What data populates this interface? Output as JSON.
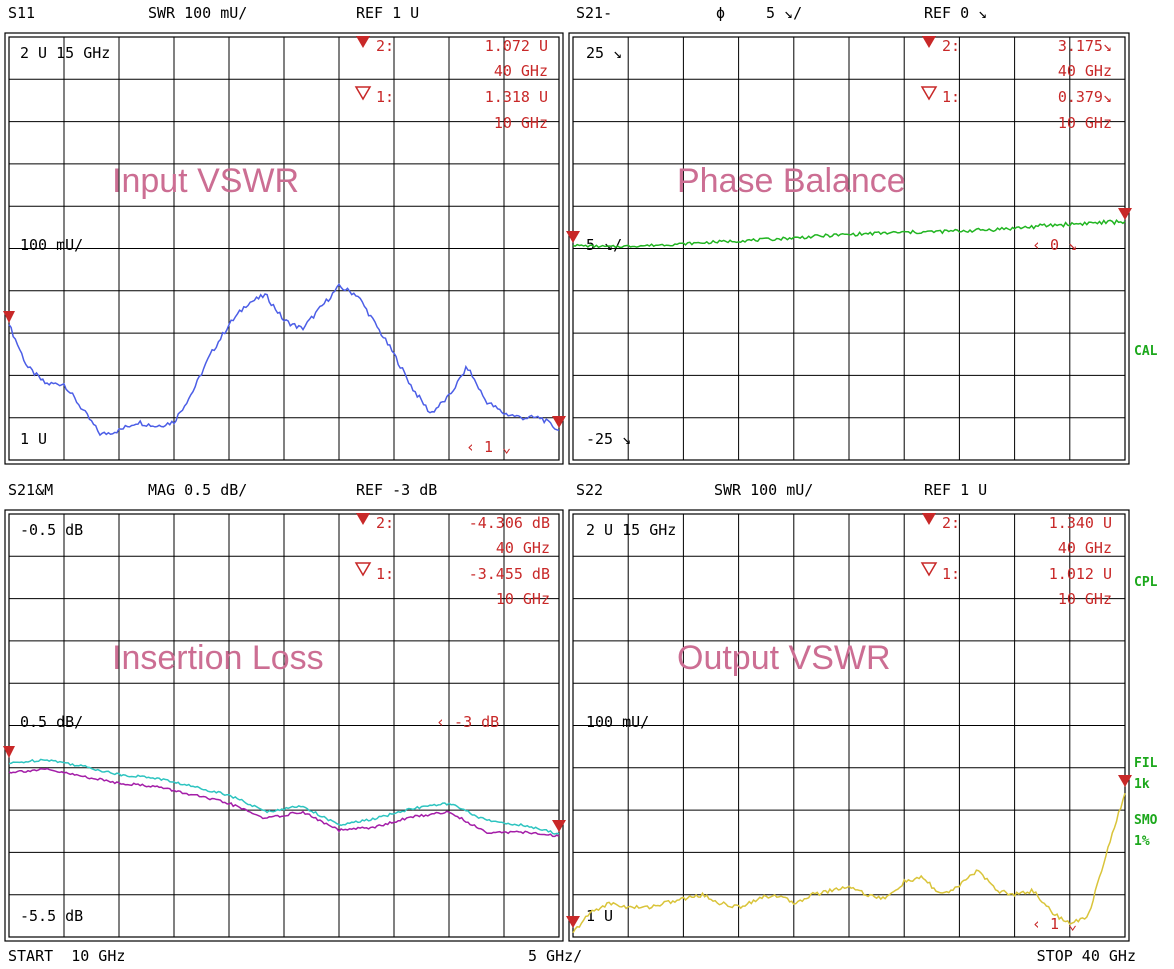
{
  "colors": {
    "grid": "#000000",
    "marker": "#c82828",
    "side_status": "#1ca81c",
    "overlay_title": "#cc6e93",
    "s11_trace": "#4c5ee6",
    "phase_trace": "#22b522",
    "loss_trace_a": "#2ec4c0",
    "loss_trace_b": "#a41ea8",
    "s22_trace": "#d9c43a"
  },
  "sweep": {
    "start_label": "START  10 GHz",
    "span_label": "5 GHz/",
    "stop_label": "STOP 40 GHz"
  },
  "side_status": {
    "cal": "CAL",
    "cpl": "CPL",
    "fil": "FIL",
    "fil_value": "1k",
    "smo": "SMO",
    "smo_value": "1%"
  },
  "chart_data": [
    {
      "type": "line",
      "panel": "top-left",
      "title": "Input VSWR",
      "header": {
        "param": "S11",
        "scale": "SWR 100 mU/",
        "ref": "REF 1 U"
      },
      "top_label": "2 U 15 GHz",
      "ref_label": "100 mU/",
      "bottom_label": "1 U",
      "ref_marker": "‹  1  ⌄",
      "markers": [
        {
          "name": "2:",
          "value": "1.072  U",
          "freq": "40 GHz"
        },
        {
          "name": "1:",
          "value": "1.318  U",
          "freq": "10 GHz"
        }
      ],
      "x_range_ghz": [
        10,
        40
      ],
      "ylim": [
        1.0,
        2.0
      ],
      "grid": true,
      "series": [
        {
          "x": [
            10,
            11,
            12,
            13,
            14,
            15,
            16,
            17,
            18,
            19,
            20,
            21,
            22,
            23,
            24,
            25,
            26,
            27,
            28,
            29,
            30,
            31,
            32,
            33,
            34,
            35,
            36,
            37,
            38,
            39,
            40
          ],
          "y": [
            1.32,
            1.22,
            1.18,
            1.18,
            1.12,
            1.06,
            1.07,
            1.09,
            1.08,
            1.09,
            1.16,
            1.25,
            1.32,
            1.37,
            1.39,
            1.33,
            1.31,
            1.36,
            1.41,
            1.39,
            1.32,
            1.25,
            1.17,
            1.11,
            1.15,
            1.22,
            1.14,
            1.11,
            1.1,
            1.1,
            1.07
          ]
        }
      ]
    },
    {
      "type": "line",
      "panel": "top-right",
      "title": "Phase Balance",
      "header": {
        "param": "S21-",
        "symbol": "ϕ",
        "scale": "5 ↘/",
        "ref": "REF 0 ↘"
      },
      "top_label": "25 ↘",
      "ref_label": "5 ↘/",
      "bottom_label": "-25 ↘",
      "ref_marker": "‹  0  ↘",
      "markers": [
        {
          "name": "2:",
          "value": "3.175↘",
          "freq": "40 GHz"
        },
        {
          "name": "1:",
          "value": "0.379↘",
          "freq": "10 GHz"
        }
      ],
      "x_range_ghz": [
        10,
        40
      ],
      "ylim": [
        -25,
        25
      ],
      "grid": true,
      "series": [
        {
          "x": [
            10,
            12,
            14,
            16,
            18,
            20,
            22,
            24,
            26,
            28,
            30,
            32,
            34,
            36,
            38,
            40
          ],
          "y": [
            0.38,
            0.2,
            0.35,
            0.55,
            0.8,
            1.0,
            1.25,
            1.55,
            1.75,
            1.9,
            2.0,
            2.15,
            2.4,
            2.75,
            3.0,
            3.18
          ]
        }
      ]
    },
    {
      "type": "line",
      "panel": "bottom-left",
      "title": "Insertion Loss",
      "header": {
        "param": "S21&M",
        "scale": "MAG 0.5 dB/",
        "ref": "REF -3 dB"
      },
      "top_label": "-0.5 dB",
      "ref_label": "0.5 dB/",
      "bottom_label": "-5.5 dB",
      "ref_marker": "‹  -3  dB",
      "markers": [
        {
          "name": "2:",
          "value": "-4.306 dB",
          "freq": "40 GHz"
        },
        {
          "name": "1:",
          "value": "-3.455 dB",
          "freq": "10 GHz"
        }
      ],
      "x_range_ghz": [
        10,
        40
      ],
      "ylim": [
        -5.5,
        -0.5
      ],
      "grid": true,
      "series": [
        {
          "x": [
            10,
            12,
            14,
            16,
            18,
            20,
            22,
            24,
            26,
            28,
            30,
            32,
            34,
            36,
            38,
            40
          ],
          "y": [
            -3.45,
            -3.4,
            -3.48,
            -3.58,
            -3.62,
            -3.72,
            -3.82,
            -4.02,
            -3.95,
            -4.18,
            -4.1,
            -3.98,
            -3.92,
            -4.12,
            -4.18,
            -4.28
          ]
        },
        {
          "x": [
            10,
            12,
            14,
            16,
            18,
            20,
            22,
            24,
            26,
            28,
            30,
            32,
            34,
            36,
            38,
            40
          ],
          "y": [
            -3.55,
            -3.52,
            -3.6,
            -3.68,
            -3.72,
            -3.82,
            -3.92,
            -4.1,
            -4.02,
            -4.24,
            -4.2,
            -4.08,
            -4.02,
            -4.26,
            -4.26,
            -4.31
          ]
        }
      ]
    },
    {
      "type": "line",
      "panel": "bottom-right",
      "title": "Output VSWR",
      "header": {
        "param": "S22",
        "scale": "SWR 100 mU/",
        "ref": "REF 1 U"
      },
      "top_label": "2 U 15 GHz",
      "ref_label": "100 mU/",
      "bottom_label": "1 U",
      "ref_marker": "‹  1  ⌄",
      "markers": [
        {
          "name": "2:",
          "value": "1.340  U",
          "freq": "40 GHz"
        },
        {
          "name": "1:",
          "value": "1.012  U",
          "freq": "10 GHz"
        }
      ],
      "x_range_ghz": [
        10,
        40
      ],
      "ylim": [
        1.0,
        2.0
      ],
      "grid": true,
      "series": [
        {
          "x": [
            10,
            11,
            12,
            13,
            14,
            15,
            16,
            17,
            18,
            19,
            20,
            21,
            22,
            23,
            24,
            25,
            26,
            27,
            28,
            29,
            30,
            31,
            32,
            33,
            34,
            35,
            36,
            37,
            38,
            39,
            40
          ],
          "y": [
            1.01,
            1.06,
            1.08,
            1.07,
            1.07,
            1.08,
            1.09,
            1.1,
            1.08,
            1.07,
            1.09,
            1.1,
            1.08,
            1.1,
            1.11,
            1.12,
            1.1,
            1.09,
            1.13,
            1.14,
            1.1,
            1.12,
            1.16,
            1.11,
            1.1,
            1.11,
            1.06,
            1.03,
            1.05,
            1.2,
            1.34
          ]
        }
      ]
    }
  ]
}
